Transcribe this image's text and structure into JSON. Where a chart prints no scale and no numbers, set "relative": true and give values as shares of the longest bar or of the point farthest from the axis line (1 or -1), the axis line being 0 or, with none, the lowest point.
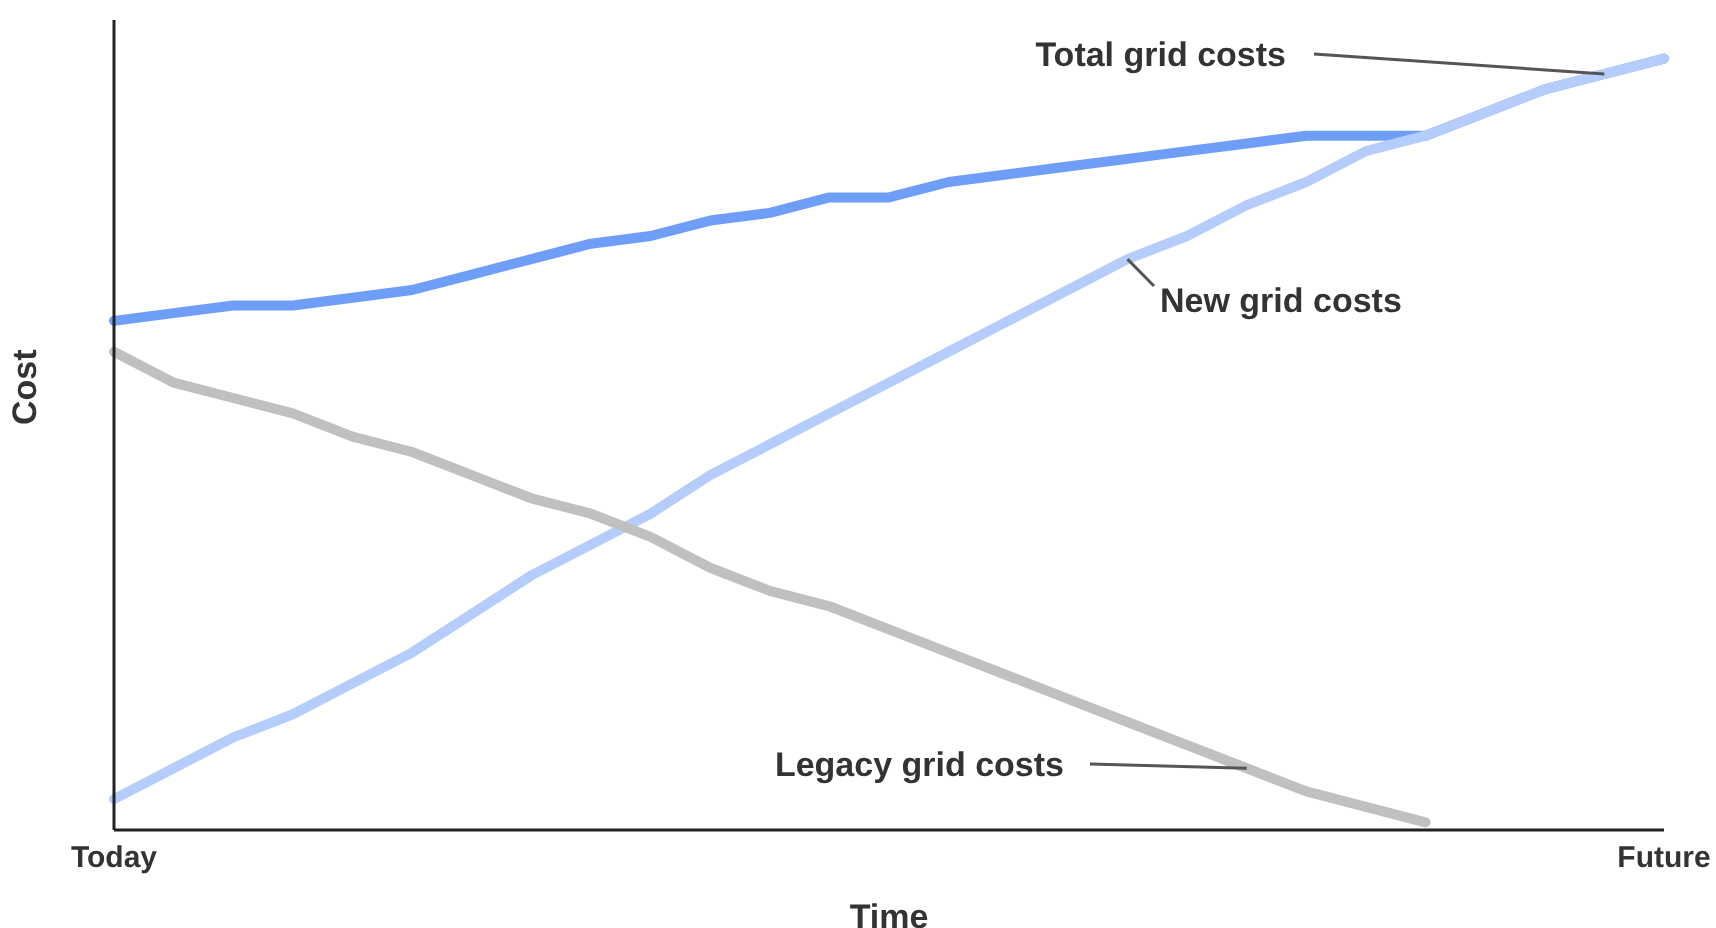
{
  "chart_data": {
    "type": "line",
    "relative": true,
    "xlabel": "Time",
    "ylabel": "Cost",
    "categories": [
      "Today",
      null,
      null,
      null,
      null,
      null,
      null,
      null,
      null,
      null,
      null,
      null,
      null,
      null,
      null,
      null,
      null,
      null,
      null,
      null,
      null,
      null,
      null,
      null,
      null,
      null,
      "Future"
    ],
    "series": [
      {
        "name": "Total grid costs",
        "color": "#6f9ef8",
        "values": [
          0.66,
          0.67,
          0.68,
          0.68,
          0.69,
          0.7,
          0.72,
          0.74,
          0.76,
          0.77,
          0.79,
          0.8,
          0.82,
          0.82,
          0.84,
          0.85,
          0.86,
          0.87,
          0.88,
          0.89,
          0.9,
          0.9,
          0.9,
          0.93,
          0.96,
          0.98,
          1
        ]
      },
      {
        "name": "New grid costs",
        "color": "#b5cdfc",
        "values": [
          0.04,
          0.08,
          0.12,
          0.15,
          0.19,
          0.23,
          0.28,
          0.33,
          0.37,
          0.41,
          0.46,
          0.5,
          0.54,
          0.58,
          0.62,
          0.66,
          0.7,
          0.74,
          0.77,
          0.81,
          0.84,
          0.88,
          0.9,
          0.93,
          0.96,
          0.98,
          1
        ]
      },
      {
        "name": "Legacy grid costs",
        "color": "#c0c0c0",
        "values": [
          0.62,
          0.58,
          0.56,
          0.54,
          0.51,
          0.49,
          0.46,
          0.43,
          0.41,
          0.38,
          0.34,
          0.31,
          0.29,
          0.26,
          0.23,
          0.2,
          0.17,
          0.14,
          0.11,
          0.08,
          0.05,
          0.03,
          0.01,
          null,
          null,
          null,
          null
        ]
      }
    ],
    "grid": false,
    "legend": false,
    "marker": "none",
    "line_style": "solid"
  }
}
